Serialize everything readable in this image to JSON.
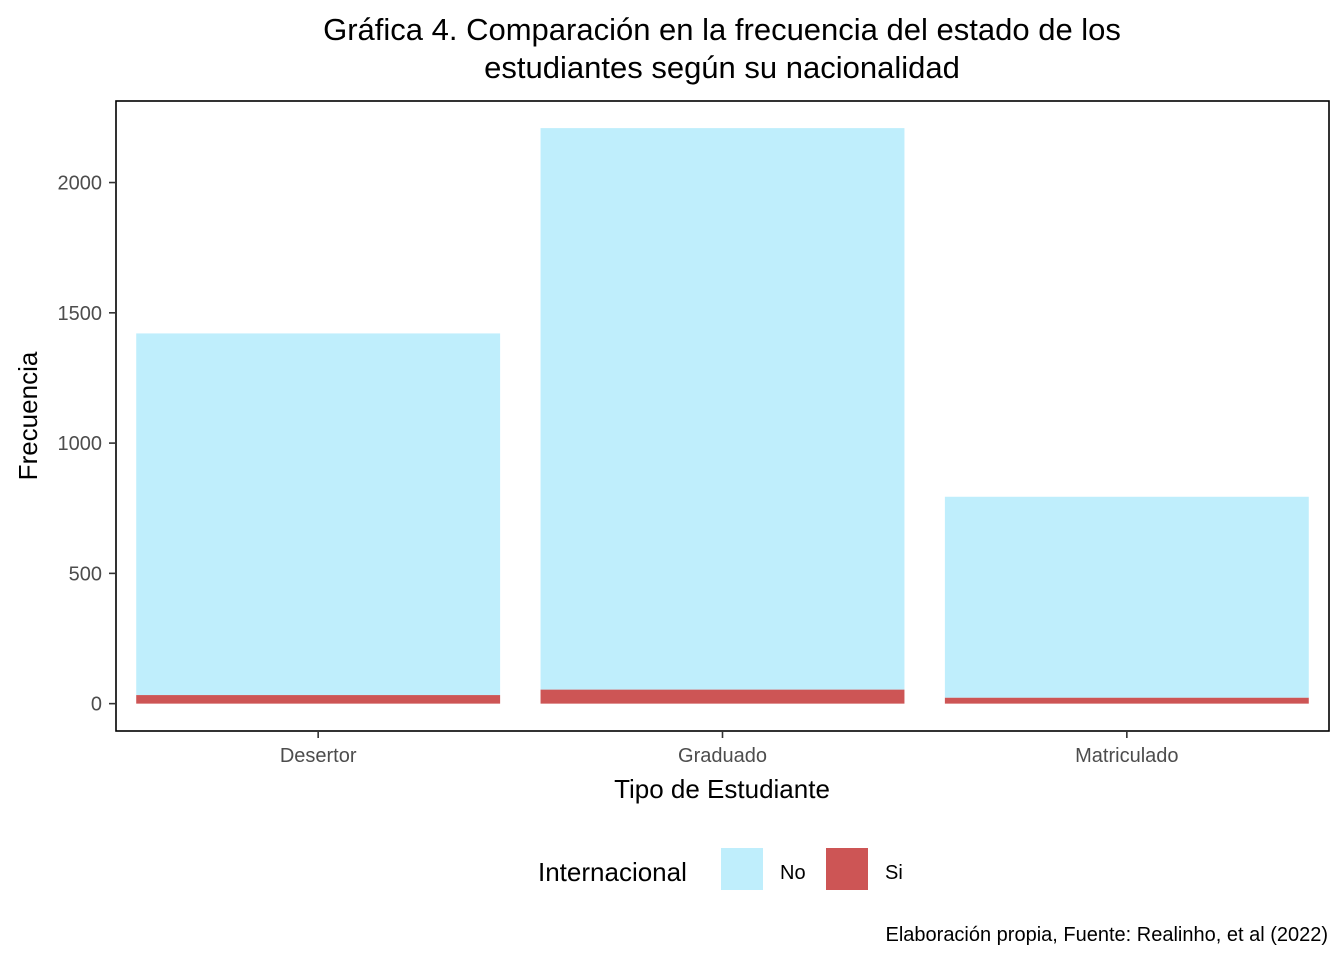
{
  "chart_data": {
    "type": "bar",
    "stacked": true,
    "title_lines": [
      "Gráfica 4. Comparación en la frecuencia del estado de los",
      "estudiantes según su nacionalidad"
    ],
    "xlabel": "Tipo de Estudiante",
    "ylabel": "Frecuencia",
    "categories": [
      "Desertor",
      "Graduado",
      "Matriculado"
    ],
    "series": [
      {
        "name": "No",
        "color": "#BFEEFC",
        "values": [
          1388,
          2155,
          771
        ]
      },
      {
        "name": "Si",
        "color": "#CD5555",
        "values": [
          33,
          54,
          23
        ]
      }
    ],
    "ylim": [
      -105,
      2313
    ],
    "y_ticks": [
      0,
      500,
      1000,
      1500,
      2000
    ],
    "legend": {
      "title": "Internacional",
      "position": "bottom"
    },
    "grid": false,
    "caption": "Elaboración propia, Fuente: Realinho, et al (2022)"
  }
}
